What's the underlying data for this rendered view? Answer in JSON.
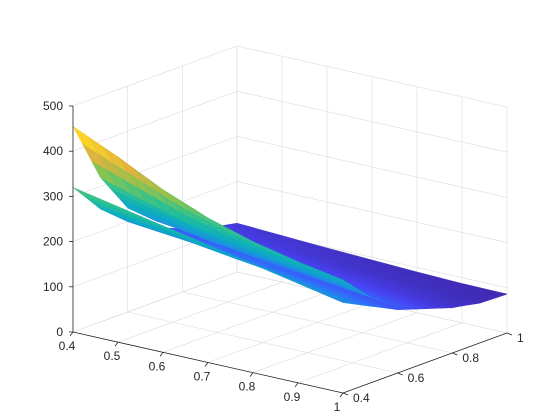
{
  "chart_data": {
    "type": "surface",
    "title": "",
    "xlabel": "",
    "ylabel": "",
    "zlabel": "",
    "xlim": [
      0.4,
      1
    ],
    "ylim": [
      0.4,
      1
    ],
    "zlim": [
      0,
      500
    ],
    "x_ticks": [
      "0.4",
      "0.5",
      "0.6",
      "0.7",
      "0.8",
      "0.9",
      "1"
    ],
    "y_ticks": [
      "0.4",
      "0.6",
      "0.8",
      "1"
    ],
    "z_ticks": [
      "0",
      "100",
      "200",
      "300",
      "400",
      "500"
    ],
    "grid": true,
    "box": false,
    "colormap": "parula",
    "colormap_colors": [
      "#3e26a8",
      "#4743f3",
      "#2f6efb",
      "#1896dd",
      "#0bb0ba",
      "#2fc28f",
      "#8bc34f",
      "#e1b33d",
      "#fbd427",
      "#f9fb15"
    ],
    "surfaces": [
      {
        "x": [
          0.4,
          0.5,
          0.6,
          0.7,
          0.8,
          0.9,
          1.0
        ],
        "y": [
          0.4,
          0.5,
          0.6,
          0.7,
          0.8,
          0.9,
          1.0
        ],
        "z": [
          [
            320,
            300,
            280,
            260,
            240,
            220,
            200
          ],
          [
            250,
            235,
            222,
            208,
            195,
            182,
            170
          ],
          [
            200,
            190,
            180,
            170,
            160,
            150,
            140
          ],
          [
            165,
            158,
            150,
            143,
            135,
            128,
            120
          ],
          [
            140,
            133,
            127,
            120,
            115,
            108,
            100
          ],
          [
            120,
            114,
            108,
            102,
            98,
            94,
            90
          ],
          [
            108,
            103,
            98,
            94,
            90,
            87,
            86
          ]
        ]
      },
      {
        "x": [
          0.4,
          0.5,
          0.6,
          0.7,
          0.8,
          0.9,
          1.0
        ],
        "y": [
          0.4,
          0.5,
          0.6,
          0.7,
          0.8,
          0.9,
          1.0
        ],
        "z": [
          [
            455,
            410,
            360,
            320,
            290,
            268,
            250
          ],
          [
            320,
            290,
            262,
            240,
            222,
            205,
            190
          ],
          [
            230,
            212,
            196,
            182,
            170,
            158,
            148
          ],
          [
            180,
            168,
            157,
            148,
            138,
            129,
            121
          ],
          [
            140,
            132,
            125,
            119,
            113,
            107,
            101
          ],
          [
            110,
            106,
            101,
            97,
            93,
            90,
            88
          ],
          [
            90,
            88,
            86,
            85,
            85,
            85,
            86
          ]
        ]
      }
    ]
  }
}
